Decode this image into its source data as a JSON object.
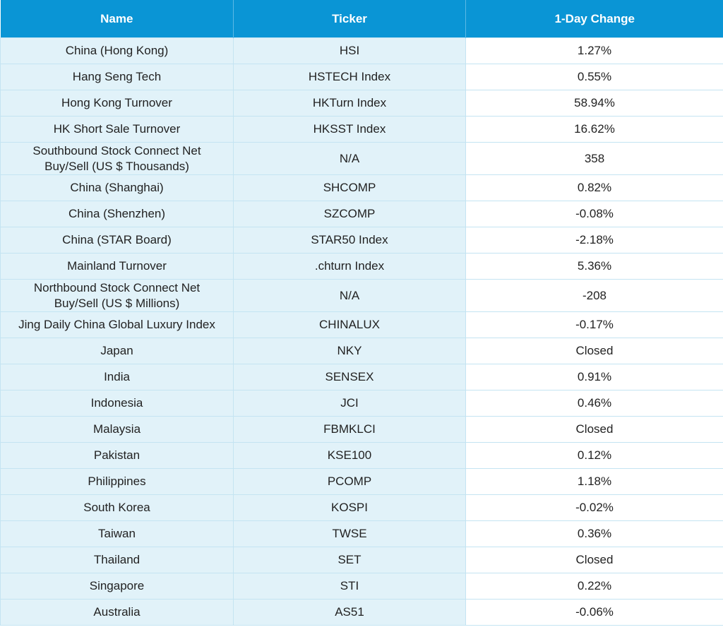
{
  "table": {
    "header": [
      "Name",
      "Ticker",
      "1-Day Change"
    ],
    "rows": [
      [
        "China (Hong Kong)",
        "HSI",
        "1.27%"
      ],
      [
        "Hang Seng Tech",
        "HSTECH Index",
        "0.55%"
      ],
      [
        "Hong Kong Turnover",
        "HKTurn Index",
        "58.94%"
      ],
      [
        "HK Short Sale Turnover",
        "HKSST Index",
        "16.62%"
      ],
      [
        [
          "Southbound Stock Connect Net",
          "Buy/Sell (US $ Thousands)"
        ],
        "N/A",
        "358"
      ],
      [
        "China (Shanghai)",
        "SHCOMP",
        "0.82%"
      ],
      [
        "China (Shenzhen)",
        "SZCOMP",
        "-0.08%"
      ],
      [
        "China (STAR Board)",
        "STAR50 Index",
        "-2.18%"
      ],
      [
        "Mainland Turnover",
        ".chturn Index",
        "5.36%"
      ],
      [
        [
          "Northbound Stock Connect Net",
          "Buy/Sell (US $ Millions)"
        ],
        "N/A",
        "-208"
      ],
      [
        "Jing Daily China Global Luxury Index",
        "CHINALUX",
        "-0.17%"
      ],
      [
        "Japan",
        "NKY",
        "Closed"
      ],
      [
        "India",
        "SENSEX",
        "0.91%"
      ],
      [
        "Indonesia",
        "JCI",
        "0.46%"
      ],
      [
        "Malaysia",
        "FBMKLCI",
        "Closed"
      ],
      [
        "Pakistan",
        "KSE100",
        "0.12%"
      ],
      [
        "Philippines",
        "PCOMP",
        "1.18%"
      ],
      [
        "South Korea",
        "KOSPI",
        "-0.02%"
      ],
      [
        "Taiwan",
        "TWSE",
        "0.36%"
      ],
      [
        "Thailand",
        "SET",
        "Closed"
      ],
      [
        "Singapore",
        "STI",
        "0.22%"
      ],
      [
        "Australia",
        "AS51",
        "-0.06%"
      ]
    ]
  }
}
